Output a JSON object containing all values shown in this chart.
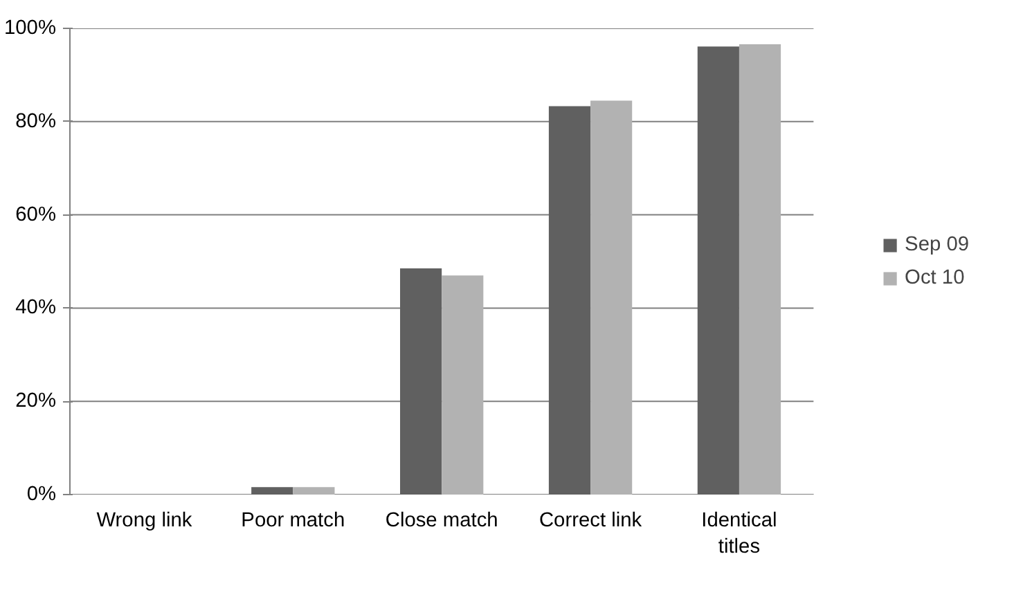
{
  "chart_data": {
    "type": "bar",
    "categories": [
      "Wrong link",
      "Poor match",
      "Close match",
      "Correct link",
      "Identical titles"
    ],
    "series": [
      {
        "name": "Sep 09",
        "color": "#606060",
        "values": [
          0,
          1.6,
          48.5,
          83.3,
          96.1
        ]
      },
      {
        "name": "Oct 10",
        "color": "#b2b2b2",
        "values": [
          0,
          1.6,
          47.0,
          84.5,
          96.6
        ]
      }
    ],
    "ylim": [
      0,
      100
    ],
    "yticks": [
      {
        "value": 0,
        "label": "0%"
      },
      {
        "value": 20,
        "label": "20%"
      },
      {
        "value": 40,
        "label": "40%"
      },
      {
        "value": 60,
        "label": "60%"
      },
      {
        "value": 80,
        "label": "80%"
      },
      {
        "value": 100,
        "label": "100%"
      }
    ],
    "grid": "y",
    "legend": "right"
  }
}
